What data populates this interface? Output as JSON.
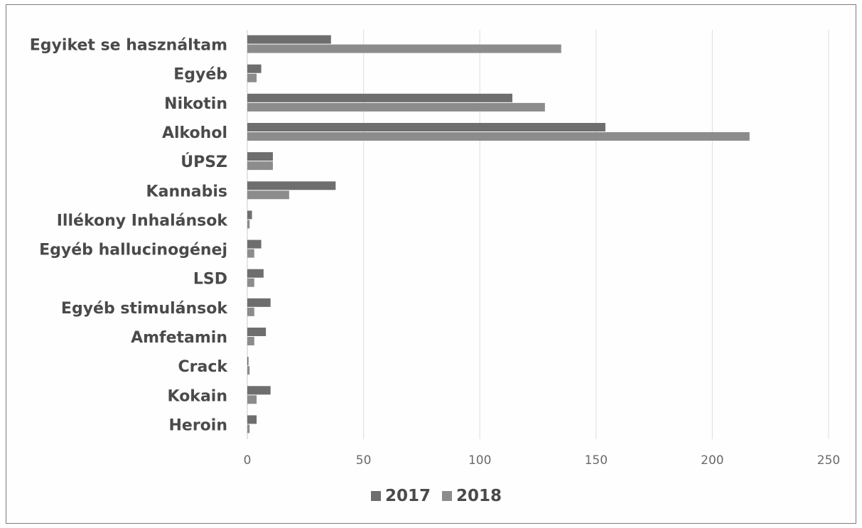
{
  "chart_data": {
    "type": "bar",
    "orientation": "horizontal",
    "categories": [
      "Egyiket se használtam",
      "Egyéb",
      "Nikotin",
      "Alkohol",
      "ÚPSZ",
      "Kannabis",
      "Illékony Inhalánsok",
      "Egyéb hallucinogénej",
      "LSD",
      "Egyéb stimulánsok",
      "Amfetamin",
      "Crack",
      "Kokain",
      "Heroin"
    ],
    "series": [
      {
        "name": "2017",
        "color": "#6e6e6e",
        "values": [
          36,
          6,
          114,
          154,
          11,
          38,
          2,
          6,
          7,
          10,
          8,
          0.5,
          10,
          4
        ]
      },
      {
        "name": "2018",
        "color": "#8c8c8c",
        "values": [
          135,
          4,
          128,
          216,
          11,
          18,
          1,
          3,
          3,
          3,
          3,
          1,
          4,
          1
        ]
      }
    ],
    "x_ticks": [
      "0",
      "50",
      "100",
      "150",
      "200",
      "250"
    ],
    "xlim": [
      0,
      250
    ],
    "grid": true,
    "legend_position": "bottom"
  }
}
